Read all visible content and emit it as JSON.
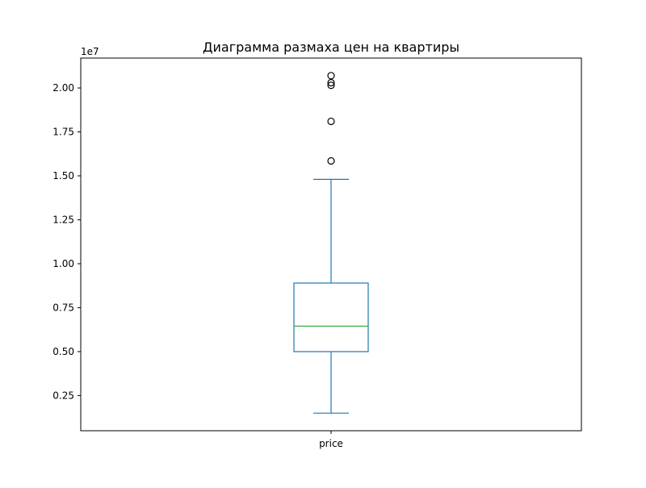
{
  "chart_data": {
    "type": "box",
    "title": "Диаграмма размаха цен на квартиры",
    "xlabel": "",
    "ylabel": "",
    "categories": [
      "price"
    ],
    "y_offset_label": "1e7",
    "y_scale_multiplier": 10000000,
    "ylim": [
      500000,
      21700000
    ],
    "y_ticks": [
      2500000,
      5000000,
      7500000,
      10000000,
      12500000,
      15000000,
      17500000,
      20000000
    ],
    "y_tick_labels": [
      "0.25",
      "0.50",
      "0.75",
      "1.00",
      "1.25",
      "1.50",
      "1.75",
      "2.00"
    ],
    "grid": false,
    "boxes": [
      {
        "name": "price",
        "whisker_low": 1500000,
        "q1": 5000000,
        "median": 6450000,
        "q3": 8900000,
        "whisker_high": 14800000,
        "outliers": [
          15850000,
          18100000,
          20150000,
          20300000,
          20700000
        ]
      }
    ],
    "colors": {
      "box": "#1f77b4",
      "median": "#2ca02c",
      "outlier": "#000000",
      "axes": "#000000"
    }
  }
}
